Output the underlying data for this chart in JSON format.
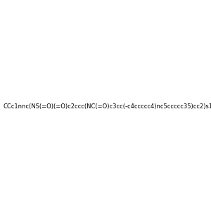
{
  "smiles": "CCc1nnc(NS(=O)(=O)c2ccc(NC(=O)c3cc(-c4ccccc4)nc5ccccc35)cc2)s1",
  "image_size": 300,
  "background_color": "#f0f0f0"
}
